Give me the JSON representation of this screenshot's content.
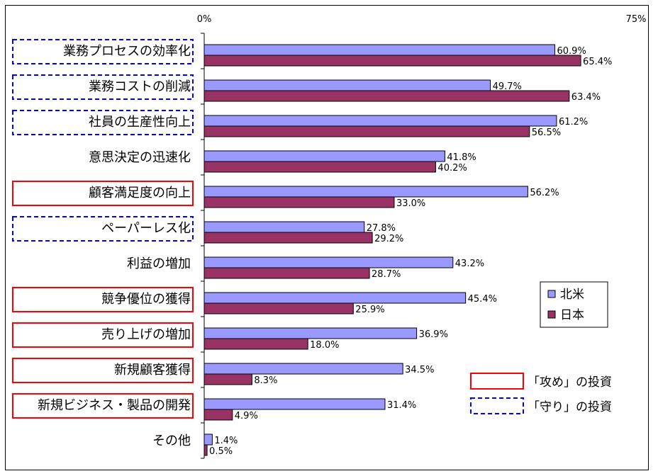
{
  "chart_data": {
    "type": "bar",
    "orientation": "horizontal",
    "xlim": [
      0,
      75
    ],
    "tick_labels": [
      "0%",
      "75%"
    ],
    "categories": [
      "業務プロセスの効率化",
      "業務コストの削減",
      "社員の生産性向上",
      "意思決定の迅速化",
      "顧客満足度の向上",
      "ペーパーレス化",
      "利益の増加",
      "競争優位の獲得",
      "売り上げの増加",
      "新規顧客獲得",
      "新規ビジネス・製品の開発",
      "その他"
    ],
    "category_frame": [
      "defense",
      "defense",
      "defense",
      "none",
      "offense",
      "defense",
      "none",
      "offense",
      "offense",
      "offense",
      "offense",
      "none"
    ],
    "series": [
      {
        "name": "北米",
        "color": "#9999ff",
        "values": [
          60.9,
          49.7,
          61.2,
          41.8,
          56.2,
          27.8,
          43.2,
          45.4,
          36.9,
          34.5,
          31.4,
          1.4
        ],
        "labels": [
          "60.9%",
          "49.7%",
          "61.2%",
          "41.8%",
          "56.2%",
          "27.8%",
          "43.2%",
          "45.4%",
          "36.9%",
          "34.5%",
          "31.4%",
          "1.4%"
        ]
      },
      {
        "name": "日本",
        "color": "#993366",
        "values": [
          65.4,
          63.4,
          56.5,
          40.2,
          33.0,
          29.2,
          28.7,
          25.9,
          18.0,
          8.3,
          4.9,
          0.5
        ],
        "labels": [
          "65.4%",
          "63.4%",
          "56.5%",
          "40.2%",
          "33.0%",
          "29.2%",
          "28.7%",
          "25.9%",
          "18.0%",
          "8.3%",
          "4.9%",
          "0.5%"
        ]
      }
    ],
    "frame_legend": [
      {
        "key": "offense",
        "label": "「攻め」の投資",
        "color": "#ff0000",
        "style": "solid"
      },
      {
        "key": "defense",
        "label": "「守り」の投資",
        "color": "#0000ff",
        "style": "dashed"
      }
    ]
  }
}
